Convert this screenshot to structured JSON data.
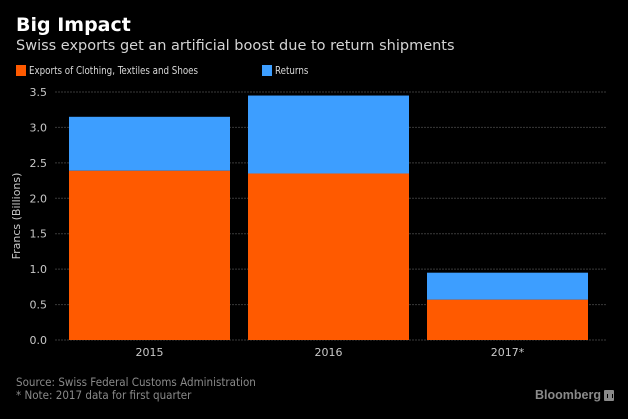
{
  "header": {
    "title": "Big Impact",
    "subtitle": "Swiss exports get an artificial boost due to return shipments"
  },
  "colors": {
    "exports": "#ff5a00",
    "returns": "#3d9eff",
    "gridline": "#3a3a3a",
    "tick_text": "#c8c8c8"
  },
  "chart_data": {
    "type": "bar",
    "stacked": true,
    "title": "Big Impact",
    "subtitle": "Swiss exports get an artificial boost due to return shipments",
    "categories": [
      "2015",
      "2016",
      "2017*"
    ],
    "series": [
      {
        "name": "Exports of Clothing, Textiles and Shoes",
        "values": [
          2.39,
          2.35,
          0.57
        ]
      },
      {
        "name": "Returns",
        "values": [
          0.76,
          1.1,
          0.38
        ]
      }
    ],
    "totals": [
      3.15,
      3.45,
      0.95
    ],
    "xlabel": "",
    "ylabel": "Francs (Billions)",
    "ylim": [
      0,
      3.5
    ],
    "yticks": [
      "0.0",
      "0.5",
      "1.0",
      "1.5",
      "2.0",
      "2.5",
      "3.0",
      "3.5"
    ],
    "ytick_values": [
      0,
      0.5,
      1.0,
      1.5,
      2.0,
      2.5,
      3.0,
      3.5
    ],
    "grid": true,
    "legend_position": "top-left"
  },
  "footer": {
    "source": "Source: Swiss Federal Customs Administration",
    "note": "* Note: 2017 data for first quarter",
    "brand": "Bloomberg"
  }
}
